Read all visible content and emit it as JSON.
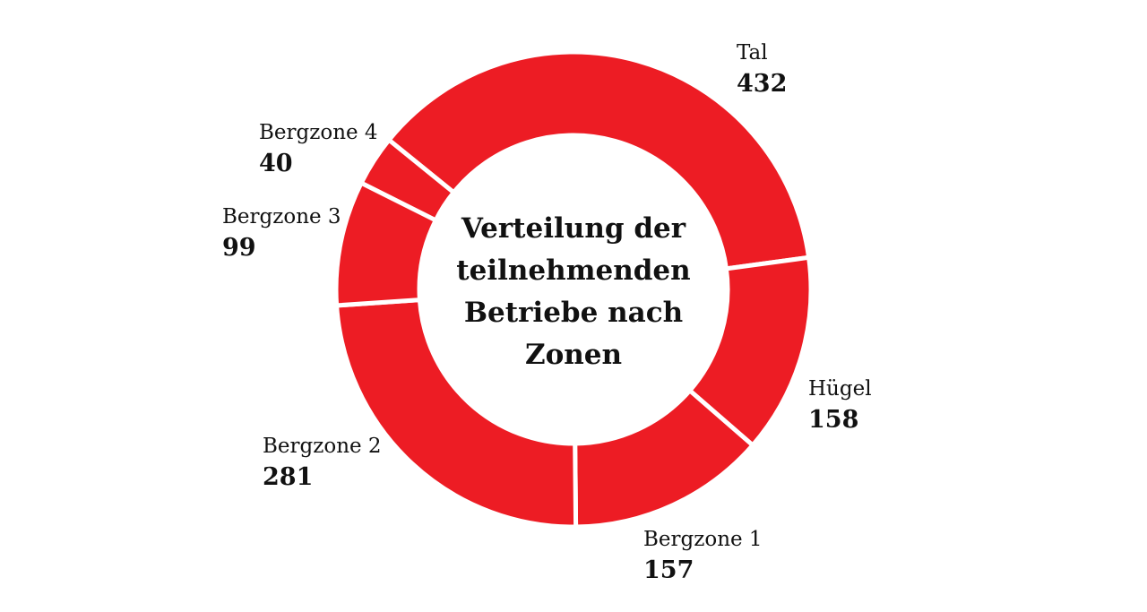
{
  "chart_data": {
    "type": "pie",
    "variant": "donut",
    "title": "Verteilung der teilnehmenden Betriebe nach Zonen",
    "categories": [
      "Tal",
      "Hügel",
      "Bergzone 1",
      "Bergzone 2",
      "Bergzone 3",
      "Bergzone 4"
    ],
    "values": [
      432,
      158,
      157,
      281,
      99,
      40
    ],
    "colors": {
      "slice": "#ED1C24",
      "separator": "#FFFFFF"
    },
    "legend": "none",
    "labels": [
      {
        "name": "Tal",
        "value": "432"
      },
      {
        "name": "Hügel",
        "value": "158"
      },
      {
        "name": "Bergzone 1",
        "value": "157"
      },
      {
        "name": "Bergzone 2",
        "value": "281"
      },
      {
        "name": "Bergzone 3",
        "value": "99"
      },
      {
        "name": "Bergzone 4",
        "value": "40"
      }
    ]
  }
}
